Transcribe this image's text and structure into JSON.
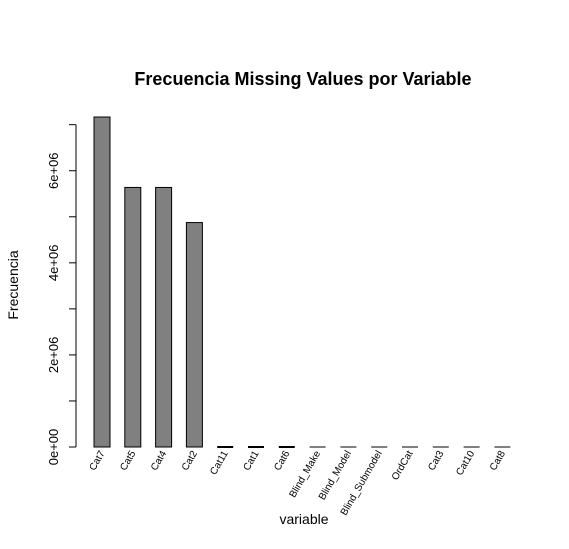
{
  "chart_data": {
    "type": "bar",
    "title": "Frecuencia Missing Values por Variable",
    "xlabel": "variable",
    "ylabel": "Frecuencia",
    "categories": [
      "Cat7",
      "Cat5",
      "Cat4",
      "Cat2",
      "Cat11",
      "Cat1",
      "Cat6",
      "Blind_Make",
      "Blind_Model",
      "Blind_Submodel",
      "OrdCat",
      "Cat3",
      "Cat10",
      "Cat8"
    ],
    "values": [
      7167000,
      5637000,
      5637000,
      4874000,
      8000,
      6000,
      5000,
      0,
      0,
      0,
      0,
      0,
      0,
      0
    ],
    "ylim": [
      0,
      7167000
    ],
    "yticks": [
      0,
      1000000,
      2000000,
      3000000,
      4000000,
      5000000,
      6000000,
      7000000
    ],
    "ytick_labels": [
      "0e+00",
      "",
      "2e+06",
      "",
      "4e+06",
      "",
      "6e+06",
      ""
    ],
    "grid": false,
    "bar_color": "#808080",
    "bar_border": "#000000"
  }
}
